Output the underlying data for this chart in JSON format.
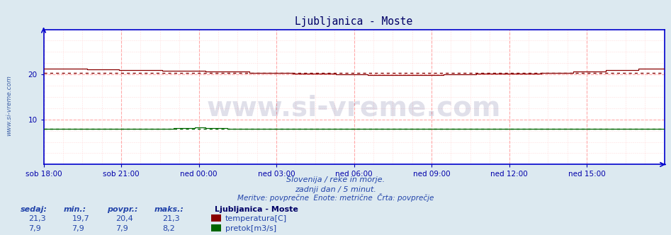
{
  "title": "Ljubljanica - Moste",
  "title_color": "#000066",
  "bg_color": "#dce9f0",
  "plot_bg_color": "#ffffff",
  "grid_color_major": "#ffaaaa",
  "grid_color_minor": "#ffdddd",
  "axis_color": "#0000cc",
  "tick_label_color": "#0000aa",
  "ylim": [
    0,
    30
  ],
  "yticks": [
    10,
    20
  ],
  "x_labels": [
    "sob 18:00",
    "sob 21:00",
    "ned 00:00",
    "ned 03:00",
    "ned 06:00",
    "ned 09:00",
    "ned 12:00",
    "ned 15:00"
  ],
  "n_points": 288,
  "temp_color": "#880000",
  "flow_color": "#006600",
  "temp_avg": 20.4,
  "flow_avg": 7.9,
  "watermark_text": "www.si-vreme.com",
  "watermark_color": "#000055",
  "watermark_alpha": 0.12,
  "watermark_fontsize": 28,
  "side_text": "www.si-vreme.com",
  "side_text_color": "#4466aa",
  "subtitle1": "Slovenija / reke in morje.",
  "subtitle2": "zadnji dan / 5 minut.",
  "subtitle3": "Meritve: povprečne  Enote: metrične  Črta: povprečje",
  "subtitle_color": "#2244aa",
  "table_label_color": "#2244aa",
  "legend_title": "Ljubljanica - Moste",
  "legend_temp_label": "temperatura[C]",
  "legend_flow_label": "pretok[m3/s]",
  "table_headers": [
    "sedaj:",
    "min.:",
    "povpr.:",
    "maks.:"
  ],
  "table_temp_values": [
    "21,3",
    "19,7",
    "20,4",
    "21,3"
  ],
  "table_flow_values": [
    "7,9",
    "7,9",
    "7,9",
    "8,2"
  ]
}
